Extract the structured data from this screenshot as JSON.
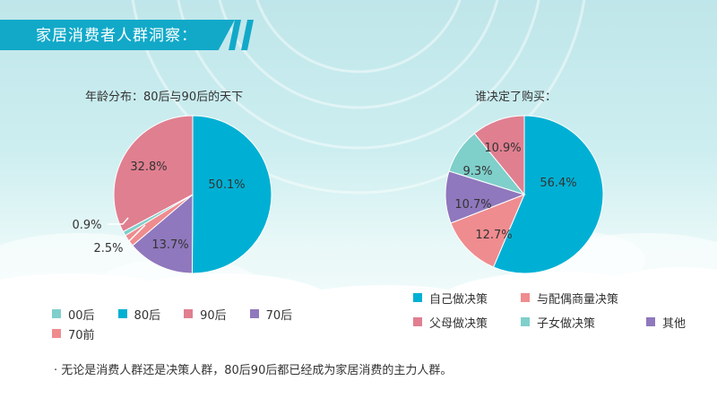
{
  "page": {
    "heading": "家居消费者人群洞察："
  },
  "colors": {
    "teal": "#7fcfcb",
    "cyan": "#00b0d4",
    "rose": "#e07f90",
    "purple": "#8f78bd",
    "salmon": "#ef8c8f",
    "banner": "#12a9c9"
  },
  "chart_data": [
    {
      "type": "pie",
      "title": "年龄分布：80后与90后的天下",
      "slices": [
        {
          "label": "80后",
          "value": 50.1,
          "display": "50.1%",
          "color": "#00b0d4"
        },
        {
          "label": "70后",
          "value": 13.7,
          "display": "13.7%",
          "color": "#8f78bd"
        },
        {
          "label": "70前",
          "value": 2.5,
          "display": "2.5%",
          "color": "#ef8c8f"
        },
        {
          "label": "00后",
          "value": 0.9,
          "display": "0.9%",
          "color": "#7fcfcb"
        },
        {
          "label": "90后",
          "value": 32.8,
          "display": "32.8%",
          "color": "#e07f90"
        }
      ],
      "legend": [
        "00后",
        "80后",
        "90后",
        "70后",
        "70前"
      ],
      "legend_colors": [
        "#7fcfcb",
        "#00b0d4",
        "#e07f90",
        "#8f78bd",
        "#ef8c8f"
      ],
      "legend_position": "bottom"
    },
    {
      "type": "pie",
      "title": "谁决定了购买：",
      "slices": [
        {
          "label": "自己做决策",
          "value": 56.4,
          "display": "56.4%",
          "color": "#00b0d4"
        },
        {
          "label": "与配偶商量决策",
          "value": 12.7,
          "display": "12.7%",
          "color": "#ef8c8f"
        },
        {
          "label": "其他",
          "value": 10.7,
          "display": "10.7%",
          "color": "#8f78bd"
        },
        {
          "label": "子女做决策",
          "value": 9.3,
          "display": "9.3%",
          "color": "#7fcfcb"
        },
        {
          "label": "父母做决策",
          "value": 10.9,
          "display": "10.9%",
          "color": "#e07f90"
        }
      ],
      "legend": [
        "自己做决策",
        "与配偶商量决策",
        "父母做决策",
        "子女做决策",
        "其他"
      ],
      "legend_colors": [
        "#00b0d4",
        "#ef8c8f",
        "#e07f90",
        "#7fcfcb",
        "#8f78bd"
      ],
      "legend_position": "bottom"
    }
  ],
  "footnote": "· 无论是消费人群还是决策人群，80后90后都已经成为家居消费的主力人群。"
}
